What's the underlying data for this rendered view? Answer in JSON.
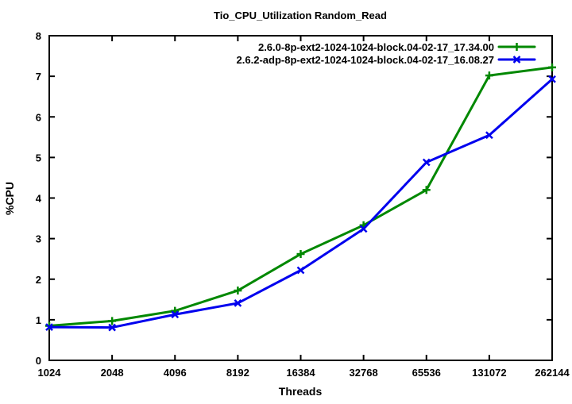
{
  "chart_data": {
    "type": "line",
    "title": "Tio_CPU_Utilization Random_Read",
    "xlabel": "Threads",
    "ylabel": "%CPU",
    "x_scale": "log2",
    "grid": false,
    "legend_position": "top-center-inside",
    "categories": [
      "1024",
      "2048",
      "4096",
      "8192",
      "16384",
      "32768",
      "65536",
      "131072",
      "262144"
    ],
    "yticks": [
      "0",
      "1",
      "2",
      "3",
      "4",
      "5",
      "6",
      "7",
      "8"
    ],
    "ylim": [
      0,
      8
    ],
    "series": [
      {
        "name": "2.6.0-8p-ext2-1024-1024-block.04-02-17_17.34.00",
        "color": "#008800",
        "marker": "plus",
        "values": [
          0.85,
          0.97,
          1.22,
          1.72,
          2.62,
          3.33,
          4.2,
          7.02,
          7.22
        ]
      },
      {
        "name": "2.6.2-adp-8p-ext2-1024-1024-block.04-02-17_16.08.27",
        "color": "#0000ee",
        "marker": "cross",
        "values": [
          0.82,
          0.81,
          1.13,
          1.41,
          2.22,
          3.24,
          4.88,
          5.55,
          6.93
        ]
      }
    ],
    "colors": {
      "axis": "#000000",
      "background": "#ffffff"
    }
  }
}
